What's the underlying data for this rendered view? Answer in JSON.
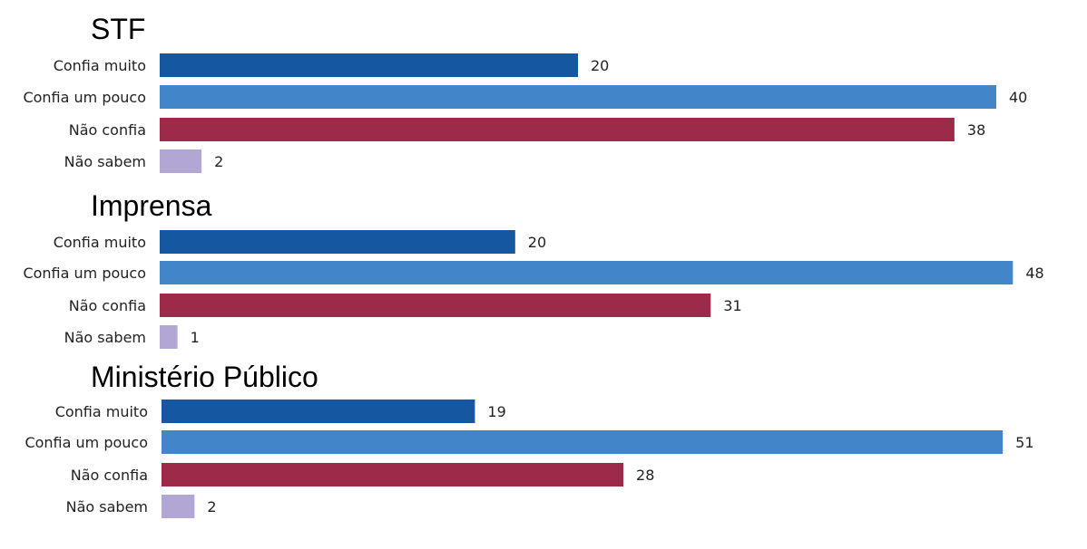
{
  "colors": {
    "Confia muito": "#1557a0",
    "Confia um pouco": "#4285c8",
    "Não confia": "#9e2a4a",
    "Não sabem": "#b1a6d4"
  },
  "chart_data": [
    {
      "type": "bar",
      "orientation": "horizontal",
      "title": "STF",
      "categories": [
        "Confia muito",
        "Confia um pouco",
        "Não confia",
        "Não sabem"
      ],
      "values": [
        20,
        40,
        38,
        2
      ]
    },
    {
      "type": "bar",
      "orientation": "horizontal",
      "title": "Imprensa",
      "categories": [
        "Confia muito",
        "Confia um pouco",
        "Não confia",
        "Não sabem"
      ],
      "values": [
        20,
        48,
        31,
        1
      ]
    },
    {
      "type": "bar",
      "orientation": "horizontal",
      "title": "Ministério Público",
      "categories": [
        "Confia muito",
        "Confia um pouco",
        "Não confia",
        "Não sabem"
      ],
      "values": [
        19,
        51,
        28,
        2
      ]
    }
  ]
}
